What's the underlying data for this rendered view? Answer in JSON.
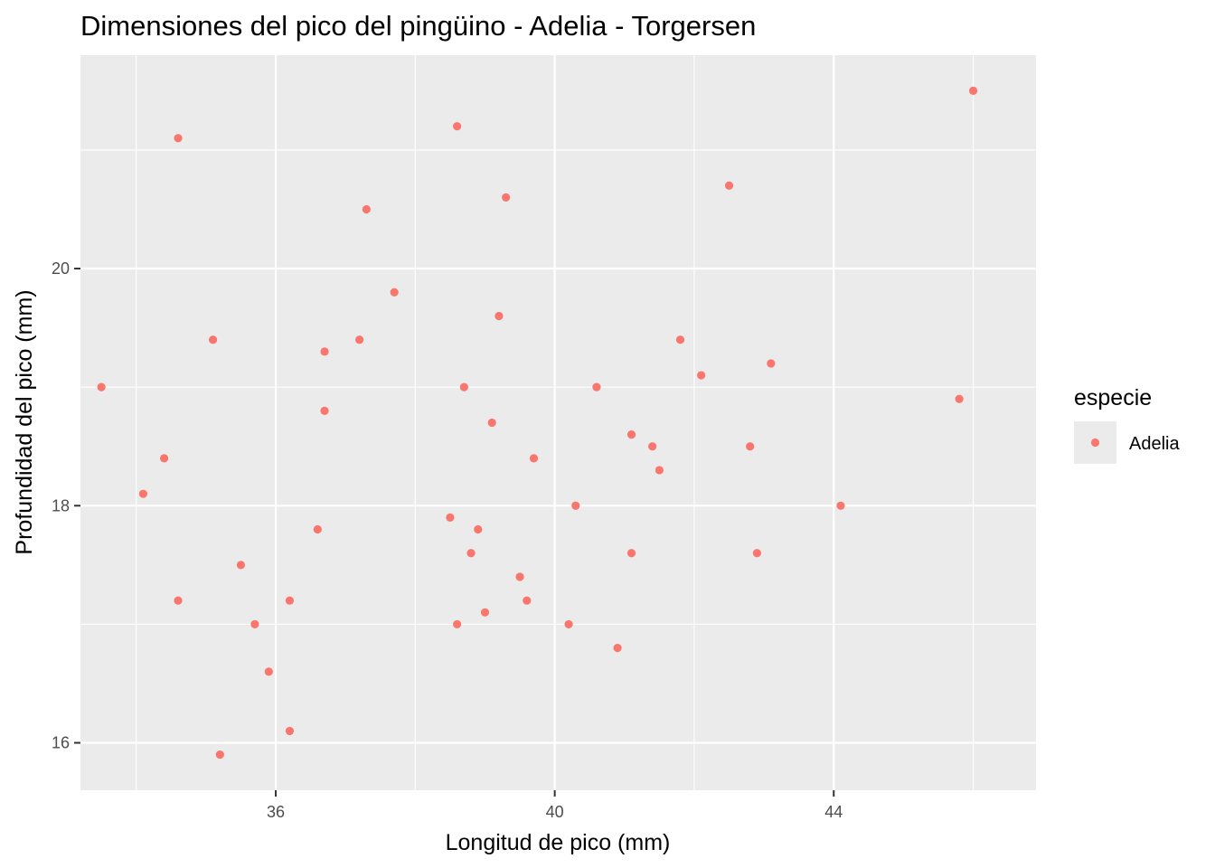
{
  "chart_data": {
    "type": "scatter",
    "title": "Dimensiones del pico del pingüino - Adelia - Torgersen",
    "xlabel": "Longitud de pico (mm)",
    "ylabel": "Profundidad del pico (mm)",
    "xlim": [
      33.2,
      46.9
    ],
    "ylim": [
      15.6,
      21.8
    ],
    "x_ticks": [
      36,
      40,
      44
    ],
    "x_tick_labels": [
      "36",
      "40",
      "44"
    ],
    "y_ticks": [
      16,
      18,
      20
    ],
    "y_tick_labels": [
      "16",
      "18",
      "20"
    ],
    "grid": true,
    "legend": {
      "title": "especie",
      "position": "right",
      "entries": [
        {
          "label": "Adelia",
          "color": "#F8766D"
        }
      ]
    },
    "series": [
      {
        "name": "Adelia",
        "color": "#F8766D",
        "points": [
          [
            33.5,
            19.0
          ],
          [
            34.1,
            18.1
          ],
          [
            34.4,
            18.4
          ],
          [
            34.6,
            21.1
          ],
          [
            34.6,
            17.2
          ],
          [
            35.1,
            19.4
          ],
          [
            35.2,
            15.9
          ],
          [
            35.5,
            17.5
          ],
          [
            35.7,
            17.0
          ],
          [
            35.9,
            16.6
          ],
          [
            36.2,
            17.2
          ],
          [
            36.2,
            16.1
          ],
          [
            36.6,
            17.8
          ],
          [
            36.7,
            19.3
          ],
          [
            36.7,
            18.8
          ],
          [
            37.2,
            19.4
          ],
          [
            37.3,
            20.5
          ],
          [
            37.7,
            19.8
          ],
          [
            38.5,
            17.9
          ],
          [
            38.6,
            21.2
          ],
          [
            38.6,
            17.0
          ],
          [
            38.7,
            19.0
          ],
          [
            38.8,
            17.6
          ],
          [
            38.9,
            17.8
          ],
          [
            39.0,
            17.1
          ],
          [
            39.1,
            18.7
          ],
          [
            39.2,
            19.6
          ],
          [
            39.3,
            20.6
          ],
          [
            39.5,
            17.4
          ],
          [
            39.6,
            17.2
          ],
          [
            39.7,
            18.4
          ],
          [
            40.2,
            17.0
          ],
          [
            40.3,
            18.0
          ],
          [
            40.6,
            19.0
          ],
          [
            40.9,
            16.8
          ],
          [
            41.1,
            18.6
          ],
          [
            41.1,
            17.6
          ],
          [
            41.4,
            18.5
          ],
          [
            41.5,
            18.3
          ],
          [
            41.8,
            19.4
          ],
          [
            42.1,
            19.1
          ],
          [
            42.5,
            20.7
          ],
          [
            42.8,
            18.5
          ],
          [
            42.9,
            17.6
          ],
          [
            43.1,
            19.2
          ],
          [
            44.1,
            18.0
          ],
          [
            45.8,
            18.9
          ],
          [
            46.0,
            21.5
          ]
        ]
      }
    ]
  }
}
